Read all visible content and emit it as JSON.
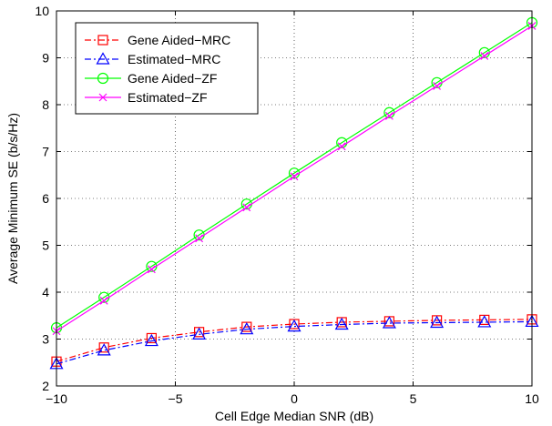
{
  "chart_data": {
    "type": "line",
    "title": "",
    "xlabel": "Cell Edge Median SNR (dB)",
    "ylabel": "Average Minimum SE (b/s/Hz)",
    "xlim": [
      -10,
      10
    ],
    "ylim": [
      2,
      10
    ],
    "xticks": [
      -10,
      -5,
      0,
      5,
      10
    ],
    "xtick_labels": [
      "−10",
      "−5",
      "0",
      "5",
      "10"
    ],
    "yticks": [
      2,
      3,
      4,
      5,
      6,
      7,
      8,
      9,
      10
    ],
    "grid": true,
    "grid_style": "dotted",
    "legend_position": "top-left",
    "x": [
      -10,
      -8,
      -6,
      -4,
      -2,
      0,
      2,
      4,
      6,
      8,
      10
    ],
    "series": [
      {
        "name": "Gene Aided−MRC",
        "color": "#ff0000",
        "line_style": "dashdot",
        "marker": "square",
        "values": [
          2.52,
          2.82,
          3.02,
          3.15,
          3.26,
          3.32,
          3.36,
          3.38,
          3.4,
          3.41,
          3.42
        ]
      },
      {
        "name": "Estimated−MRC",
        "color": "#0000ff",
        "line_style": "dashdot",
        "marker": "triangle",
        "values": [
          2.47,
          2.76,
          2.96,
          3.1,
          3.21,
          3.27,
          3.31,
          3.34,
          3.35,
          3.36,
          3.37
        ]
      },
      {
        "name": "Gene Aided−ZF",
        "color": "#00ff00",
        "line_style": "solid",
        "marker": "circle",
        "values": [
          3.24,
          3.89,
          4.55,
          5.22,
          5.88,
          6.54,
          7.19,
          7.83,
          8.47,
          9.11,
          9.75
        ]
      },
      {
        "name": "Estimated−ZF",
        "color": "#ff00ff",
        "line_style": "solid",
        "marker": "x",
        "values": [
          3.17,
          3.82,
          4.49,
          5.15,
          5.81,
          6.47,
          7.11,
          7.76,
          8.4,
          9.04,
          9.68
        ]
      }
    ]
  }
}
